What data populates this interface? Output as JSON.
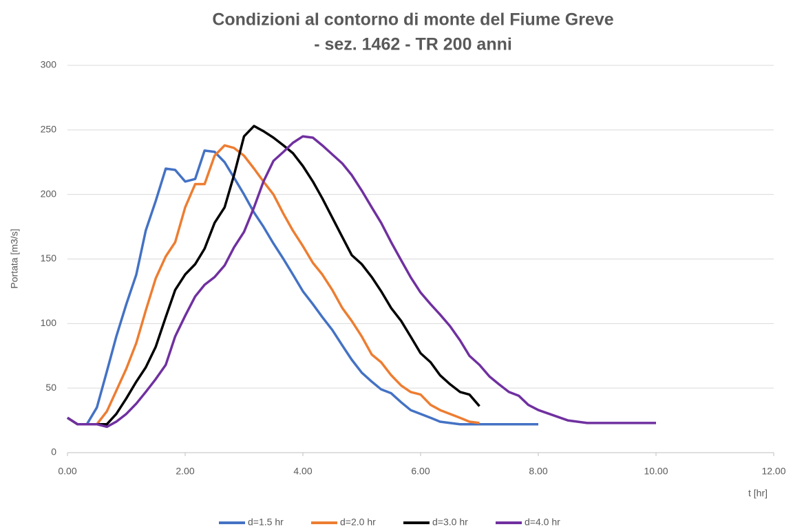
{
  "chart_data": {
    "type": "line",
    "title": [
      "Condizioni al contorno di monte del Fiume Greve",
      "- sez. 1462 - TR 200 anni"
    ],
    "ylabel": "Portata [m3/s]",
    "xlabel": "t [hr]",
    "xlim": [
      0,
      12
    ],
    "xticks": [
      {
        "value": 0,
        "label": "0.00"
      },
      {
        "value": 2,
        "label": "2.00"
      },
      {
        "value": 4,
        "label": "4.00"
      },
      {
        "value": 6,
        "label": "6.00"
      },
      {
        "value": 8,
        "label": "8.00"
      },
      {
        "value": 10,
        "label": "10.00"
      },
      {
        "value": 12,
        "label": "12.00"
      }
    ],
    "ylim": [
      0,
      300
    ],
    "yticks": [
      0,
      50,
      100,
      150,
      200,
      250,
      300
    ],
    "grid": true,
    "legend": "bottom",
    "series": [
      {
        "name": "d=1.5 hr",
        "color": "#4472c4",
        "x": [
          0,
          0.17,
          0.33,
          0.5,
          0.67,
          0.83,
          1.0,
          1.17,
          1.33,
          1.5,
          1.67,
          1.83,
          2.0,
          2.17,
          2.33,
          2.5,
          2.67,
          2.83,
          3.0,
          3.17,
          3.33,
          3.5,
          3.67,
          3.83,
          4.0,
          4.17,
          4.33,
          4.5,
          4.67,
          4.83,
          5.0,
          5.17,
          5.33,
          5.5,
          5.67,
          5.83,
          6.0,
          6.17,
          6.33,
          6.5,
          6.67,
          7.0,
          7.5,
          8.0
        ],
        "values": [
          27,
          22,
          22,
          35,
          63,
          90,
          115,
          138,
          172,
          195,
          220,
          219,
          210,
          212,
          234,
          233,
          225,
          213,
          200,
          186,
          175,
          162,
          150,
          138,
          125,
          115,
          105,
          95,
          83,
          72,
          62,
          55,
          49,
          46,
          39,
          33,
          30,
          27,
          24,
          23,
          22,
          22,
          22,
          22
        ]
      },
      {
        "name": "d=2.0 hr",
        "color": "#ed7d31",
        "x": [
          0,
          0.17,
          0.33,
          0.5,
          0.67,
          0.83,
          1.0,
          1.17,
          1.33,
          1.5,
          1.67,
          1.83,
          2.0,
          2.17,
          2.33,
          2.5,
          2.67,
          2.83,
          3.0,
          3.17,
          3.33,
          3.5,
          3.67,
          3.83,
          4.0,
          4.17,
          4.33,
          4.5,
          4.67,
          4.83,
          5.0,
          5.17,
          5.33,
          5.5,
          5.67,
          5.83,
          6.0,
          6.17,
          6.33,
          6.5,
          6.67,
          6.83,
          7.0
        ],
        "values": [
          27,
          22,
          22,
          22,
          32,
          48,
          65,
          85,
          110,
          135,
          152,
          163,
          190,
          208,
          208,
          230,
          238,
          236,
          230,
          220,
          210,
          200,
          185,
          172,
          160,
          147,
          138,
          126,
          112,
          102,
          90,
          76,
          70,
          60,
          52,
          47,
          45,
          37,
          33,
          30,
          27,
          24,
          23
        ]
      },
      {
        "name": "d=3.0 hr",
        "color": "#000000",
        "x": [
          0,
          0.17,
          0.33,
          0.5,
          0.67,
          0.83,
          1.0,
          1.17,
          1.33,
          1.5,
          1.67,
          1.83,
          2.0,
          2.17,
          2.33,
          2.5,
          2.67,
          2.83,
          3.0,
          3.17,
          3.33,
          3.5,
          3.67,
          3.83,
          4.0,
          4.17,
          4.33,
          4.5,
          4.67,
          4.83,
          5.0,
          5.17,
          5.33,
          5.5,
          5.67,
          5.83,
          6.0,
          6.17,
          6.33,
          6.5,
          6.67,
          6.83,
          7.0
        ],
        "values": [
          27,
          22,
          22,
          22,
          22,
          30,
          42,
          55,
          66,
          82,
          105,
          126,
          138,
          146,
          158,
          178,
          190,
          215,
          245,
          253,
          249,
          244,
          238,
          232,
          222,
          210,
          197,
          182,
          167,
          153,
          146,
          136,
          125,
          112,
          102,
          90,
          77,
          70,
          60,
          53,
          47,
          45,
          36
        ]
      },
      {
        "name": "d=4.0 hr",
        "color": "#7030a0",
        "x": [
          0,
          0.17,
          0.33,
          0.5,
          0.67,
          0.83,
          1.0,
          1.17,
          1.33,
          1.5,
          1.67,
          1.83,
          2.0,
          2.17,
          2.33,
          2.5,
          2.67,
          2.83,
          3.0,
          3.17,
          3.33,
          3.5,
          3.67,
          3.83,
          4.0,
          4.17,
          4.33,
          4.5,
          4.67,
          4.83,
          5.0,
          5.17,
          5.33,
          5.5,
          5.67,
          5.83,
          6.0,
          6.17,
          6.33,
          6.5,
          6.67,
          6.83,
          7.0,
          7.17,
          7.33,
          7.5,
          7.67,
          7.83,
          8.0,
          8.5,
          8.83,
          9.0,
          10.0
        ],
        "values": [
          27,
          22,
          22,
          22,
          20,
          24,
          30,
          38,
          47,
          57,
          68,
          90,
          106,
          121,
          130,
          136,
          145,
          159,
          171,
          190,
          210,
          226,
          233,
          240,
          245,
          244,
          238,
          231,
          224,
          215,
          203,
          190,
          178,
          163,
          149,
          136,
          124,
          115,
          107,
          98,
          87,
          75,
          68,
          59,
          53,
          47,
          44,
          37,
          33,
          25,
          23,
          23,
          23
        ]
      }
    ]
  }
}
